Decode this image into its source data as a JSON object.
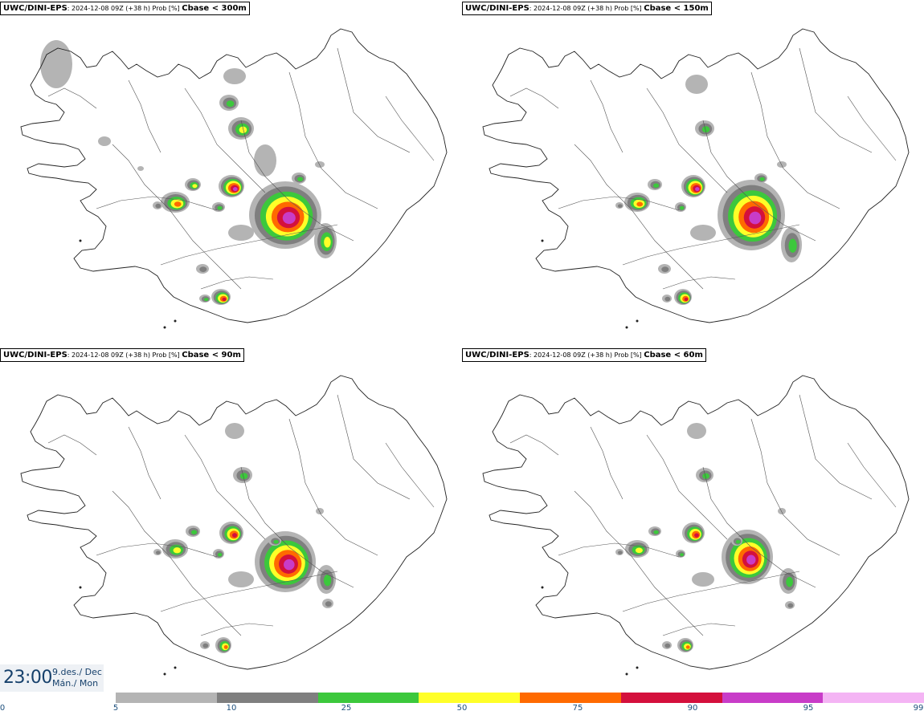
{
  "panels": [
    {
      "model": "UWC/DINI-EPS",
      "meta": ": 2024-12-08 09Z (+38 h) Prob [%] ",
      "param": "Cbase < 300m"
    },
    {
      "model": "UWC/DINI-EPS",
      "meta": ": 2024-12-08 09Z (+38 h) Prob [%] ",
      "param": "Cbase < 150m"
    },
    {
      "model": "UWC/DINI-EPS",
      "meta": ": 2024-12-08 09Z (+38 h) Prob [%] ",
      "param": "Cbase < 90m"
    },
    {
      "model": "UWC/DINI-EPS",
      "meta": ": 2024-12-08 09Z (+38 h) Prob [%] ",
      "param": "Cbase < 60m"
    }
  ],
  "time": {
    "clock": "23:00",
    "date_line1": "9.des./ Dec",
    "date_line2": "Mán./ Mon"
  },
  "colorbar": {
    "ticks": [
      "0",
      "5",
      "10",
      "25",
      "50",
      "75",
      "90",
      "95",
      "99"
    ],
    "segments": [
      {
        "from": "5",
        "to": "10",
        "color": "#b4b4b4"
      },
      {
        "from": "10",
        "to": "25",
        "color": "#7f7f7f"
      },
      {
        "from": "25",
        "to": "50",
        "color": "#3cc83c"
      },
      {
        "from": "50",
        "to": "75",
        "color": "#ffff28"
      },
      {
        "from": "75",
        "to": "90",
        "color": "#ff6a00"
      },
      {
        "from": "90",
        "to": "95",
        "color": "#d4103c"
      },
      {
        "from": "95",
        "to": "99",
        "color": "#c83cc8"
      },
      {
        "from": "99",
        "to": "",
        "color": "#f4b4f4"
      }
    ]
  }
}
